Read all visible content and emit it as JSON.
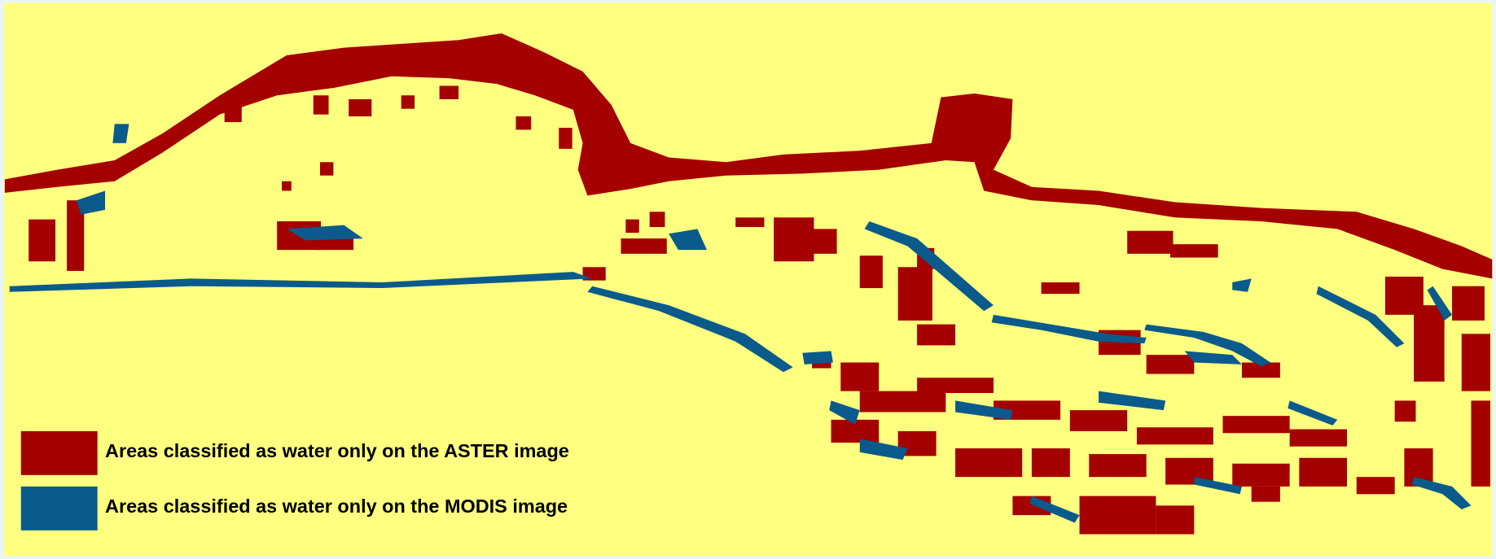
{
  "legend": {
    "items": [
      {
        "label": "Areas classified as water only on the ASTER image",
        "color": "#a50000"
      },
      {
        "label": "Areas classified as water only on the MODIS image",
        "color": "#0a5a8c"
      }
    ]
  }
}
